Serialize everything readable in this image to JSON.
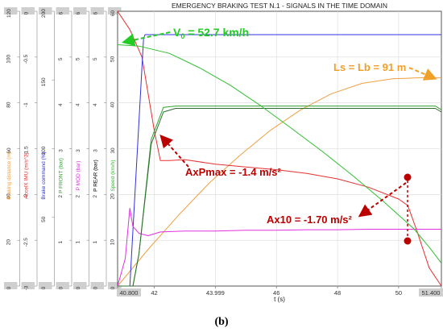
{
  "caption": "(b)",
  "chart_data": {
    "type": "line",
    "title": "EMERGENCY BRAKING TEST N.1 - SIGNALS IN THE TIME DOMAIN",
    "xlabel": "t (s)",
    "x_tick_labels": [
      "40.800",
      "42",
      "43.999",
      "46",
      "48",
      "50",
      "51.400"
    ],
    "xlim": [
      40.8,
      51.4
    ],
    "grid": true,
    "axes": [
      {
        "label": "Braking distance (m)",
        "color": "#f0a040",
        "min": 0,
        "max": 120,
        "ticks": [
          "120",
          "100",
          "80",
          "60",
          "40",
          "20",
          "0"
        ]
      },
      {
        "label": "AccelX IMU (m/s^2)",
        "color": "#e83030",
        "min": -3,
        "max": 0,
        "ticks": [
          "0",
          "-0.5",
          "-1",
          "-1.5",
          "-2",
          "-2.5",
          "-3"
        ]
      },
      {
        "label": "Brake command (%)",
        "color": "#3030e0",
        "min": 0,
        "max": 200,
        "ticks": [
          "200",
          "150",
          "100",
          "50",
          "0"
        ]
      },
      {
        "label": "P FRONT (bar)",
        "color": "#30a030",
        "min": 0,
        "max": 6,
        "ticks": [
          "6",
          "5",
          "4",
          "3",
          "2",
          "1",
          "0"
        ]
      },
      {
        "label": "P MOD (bar)",
        "color": "#e030e0",
        "min": 0,
        "max": 6,
        "ticks": [
          "6",
          "5",
          "4",
          "3",
          "2",
          "1",
          "0"
        ]
      },
      {
        "label": "P REAR (bar)",
        "color": "#000000",
        "min": 0,
        "max": 6,
        "ticks": [
          "6",
          "5",
          "4",
          "3",
          "2",
          "1",
          "0"
        ]
      },
      {
        "label": "Speed (km/h)",
        "color": "#30c030",
        "min": 0,
        "max": 60,
        "ticks": [
          "60",
          "50",
          "40",
          "30",
          "20",
          "10",
          "0"
        ]
      }
    ],
    "series": [
      {
        "color": "#f0a040",
        "axis": 0,
        "x": [
          40.8,
          41.8,
          42.8,
          43.8,
          44.8,
          45.8,
          46.8,
          47.8,
          48.8,
          49.8,
          50.8,
          51.4
        ],
        "y": [
          0,
          16,
          31,
          45,
          57,
          68,
          77,
          84,
          88.5,
          90.5,
          91,
          91
        ]
      },
      {
        "color": "#e83030",
        "axis": 1,
        "x": [
          40.8,
          41.2,
          41.6,
          42.0,
          42.2,
          42.5,
          43.0,
          44.0,
          45.0,
          46.0,
          47.0,
          48.0,
          49.0,
          50.0,
          50.3,
          50.6,
          51.0,
          51.4
        ],
        "y": [
          0,
          -0.2,
          -0.5,
          -1.3,
          -1.63,
          -1.63,
          -1.62,
          -1.67,
          -1.7,
          -1.73,
          -1.77,
          -1.83,
          -1.92,
          -2.05,
          -2.12,
          -2.4,
          -2.8,
          -3.0
        ]
      },
      {
        "color": "#3030e0",
        "axis": 2,
        "x": [
          40.8,
          41.2,
          41.65,
          41.7,
          51.4
        ],
        "y": [
          0,
          0,
          180,
          183,
          183
        ]
      },
      {
        "color": "#30a030",
        "axis": 3,
        "x": [
          40.8,
          41.3,
          41.5,
          41.9,
          42.3,
          42.7,
          51.2,
          51.4
        ],
        "y": [
          0,
          0,
          0.7,
          3.2,
          3.9,
          3.93,
          3.93,
          3.85
        ]
      },
      {
        "color": "#e030e0",
        "axis": 4,
        "x": [
          40.8,
          41.05,
          41.2,
          41.3,
          41.5,
          41.8,
          42.2,
          43,
          44,
          45,
          46,
          47,
          48,
          49,
          50,
          51.4
        ],
        "y": [
          0,
          0.6,
          1.7,
          1.3,
          1.15,
          1.1,
          1.18,
          1.2,
          1.2,
          1.22,
          1.22,
          1.23,
          1.23,
          1.24,
          1.24,
          1.24
        ]
      },
      {
        "color": "#2c6e2c",
        "axis": 5,
        "x": [
          40.8,
          41.3,
          41.5,
          41.9,
          42.3,
          42.7,
          51.2,
          51.4
        ],
        "y": [
          0,
          0,
          0.7,
          3.1,
          3.8,
          3.88,
          3.88,
          3.8
        ]
      },
      {
        "color": "#30c030",
        "axis": 6,
        "x": [
          40.8,
          41.5,
          42.5,
          43.5,
          44.5,
          45.5,
          46.5,
          47.5,
          48.5,
          49.5,
          50.5,
          51.0,
          51.4
        ],
        "y": [
          52.7,
          52.4,
          50.8,
          47.6,
          43.8,
          39.3,
          34.4,
          29.4,
          24.1,
          18.5,
          12.5,
          8.5,
          5
        ]
      }
    ],
    "annotations": [
      {
        "text": "V",
        "sub": "0",
        "rest": " = 52.7 km/h",
        "color": "#22cc22"
      },
      {
        "text": "Ls = Lb = 91 m",
        "color": "#f0a028"
      },
      {
        "text": "AxPmax = -1.4 m/s²",
        "color": "#bb0000"
      },
      {
        "text": "Ax10 = -1.70 m/s²",
        "color": "#bb0000"
      }
    ]
  }
}
